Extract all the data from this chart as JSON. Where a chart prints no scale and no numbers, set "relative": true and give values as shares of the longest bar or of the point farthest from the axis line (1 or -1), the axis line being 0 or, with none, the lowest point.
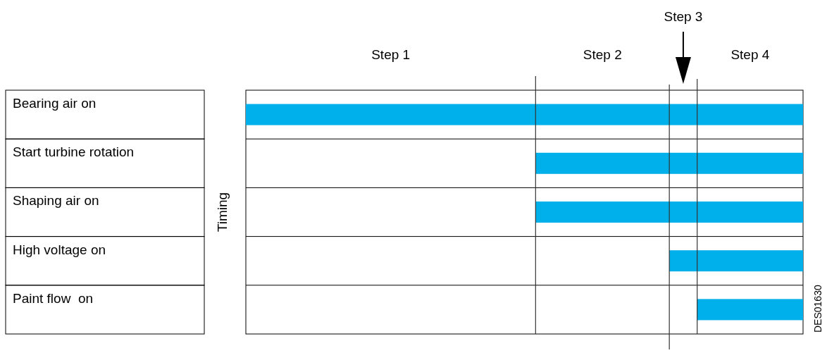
{
  "chart_data": {
    "type": "bar",
    "orientation": "horizontal",
    "relative": true,
    "ylabel": "Timing",
    "categories": [
      "Bearing air on",
      "Start turbine rotation",
      "Shaping air on",
      "High voltage on",
      "Paint flow  on"
    ],
    "values": [
      1,
      0.48,
      0.48,
      0.24,
      0.19
    ],
    "color": "#00b0ea",
    "ref_lines": [
      {
        "axis": "x",
        "value": 0.48,
        "color": "#333333"
      },
      {
        "axis": "x",
        "value": 0.24,
        "color": "#333333"
      },
      {
        "axis": "x",
        "value": 0.19,
        "color": "#333333"
      }
    ],
    "annotations": [
      "Step 1",
      "Step 2",
      "Step 3",
      "Step 4",
      "DES01630"
    ]
  }
}
